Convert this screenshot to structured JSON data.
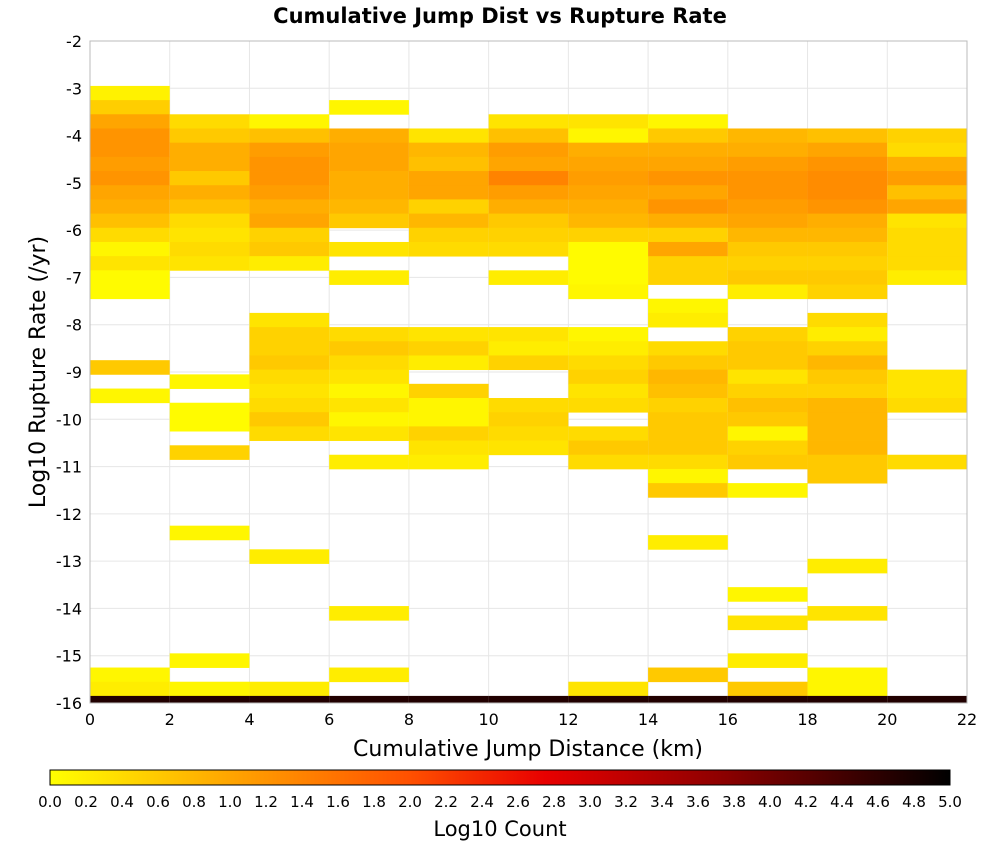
{
  "chart_data": {
    "type": "heatmap",
    "title": "Cumulative Jump Dist vs Rupture Rate",
    "xlabel": "Cumulative Jump Distance (km)",
    "ylabel": "Log10 Rupture Rate (/yr)",
    "xlim": [
      0,
      22
    ],
    "ylim": [
      -16,
      -2
    ],
    "xticks": [
      "0",
      "2",
      "4",
      "6",
      "8",
      "10",
      "12",
      "14",
      "16",
      "18",
      "20",
      "22"
    ],
    "yticks": [
      "-2",
      "-3",
      "-4",
      "-5",
      "-6",
      "-7",
      "-8",
      "-9",
      "-10",
      "-11",
      "-12",
      "-13",
      "-14",
      "-15",
      "-16"
    ],
    "grid": true,
    "x_bin_width": 2,
    "y_bin_height": 0.3,
    "colorbar": {
      "label": "Log10 Count",
      "range": [
        0,
        5
      ],
      "ticks": [
        "0.0",
        "0.2",
        "0.4",
        "0.6",
        "0.8",
        "1.0",
        "1.2",
        "1.4",
        "1.6",
        "1.8",
        "2.0",
        "2.2",
        "2.4",
        "2.6",
        "2.8",
        "3.0",
        "3.2",
        "3.4",
        "3.6",
        "3.8",
        "4.0",
        "4.2",
        "4.4",
        "4.6",
        "4.8",
        "5.0"
      ],
      "colormap": [
        "#ffff00",
        "#ffa500",
        "#ff5000",
        "#e80000",
        "#8b0000",
        "#000000"
      ]
    },
    "cells": [
      {
        "x": 1,
        "y": -3.1,
        "v": 0.15
      },
      {
        "x": 1,
        "y": -3.4,
        "v": 0.55
      },
      {
        "x": 1,
        "y": -3.7,
        "v": 1.0
      },
      {
        "x": 1,
        "y": -4.0,
        "v": 1.2
      },
      {
        "x": 1,
        "y": -4.3,
        "v": 1.2
      },
      {
        "x": 1,
        "y": -4.6,
        "v": 1.1
      },
      {
        "x": 1,
        "y": -4.9,
        "v": 1.2
      },
      {
        "x": 1,
        "y": -5.2,
        "v": 1.0
      },
      {
        "x": 1,
        "y": -5.5,
        "v": 0.9
      },
      {
        "x": 1,
        "y": -5.8,
        "v": 0.7
      },
      {
        "x": 1,
        "y": -6.1,
        "v": 0.4
      },
      {
        "x": 1,
        "y": -6.4,
        "v": 0.1
      },
      {
        "x": 1,
        "y": -6.7,
        "v": 0.3
      },
      {
        "x": 1,
        "y": -7.0,
        "v": 0.05
      },
      {
        "x": 1,
        "y": -7.3,
        "v": 0.05
      },
      {
        "x": 1,
        "y": -8.9,
        "v": 0.6
      },
      {
        "x": 1,
        "y": -9.5,
        "v": 0.1
      },
      {
        "x": 1,
        "y": -15.4,
        "v": 0.1
      },
      {
        "x": 1,
        "y": -15.7,
        "v": 0.2
      },
      {
        "x": 1,
        "y": -16.0,
        "v": 4.7
      },
      {
        "x": 3,
        "y": -3.7,
        "v": 0.4
      },
      {
        "x": 3,
        "y": -4.0,
        "v": 0.6
      },
      {
        "x": 3,
        "y": -4.3,
        "v": 0.9
      },
      {
        "x": 3,
        "y": -4.6,
        "v": 0.9
      },
      {
        "x": 3,
        "y": -4.9,
        "v": 0.6
      },
      {
        "x": 3,
        "y": -5.2,
        "v": 0.9
      },
      {
        "x": 3,
        "y": -5.5,
        "v": 0.7
      },
      {
        "x": 3,
        "y": -5.8,
        "v": 0.4
      },
      {
        "x": 3,
        "y": -6.1,
        "v": 0.3
      },
      {
        "x": 3,
        "y": -6.4,
        "v": 0.4
      },
      {
        "x": 3,
        "y": -6.7,
        "v": 0.3
      },
      {
        "x": 3,
        "y": -9.2,
        "v": 0.1
      },
      {
        "x": 3,
        "y": -9.8,
        "v": 0.05
      },
      {
        "x": 3,
        "y": -10.1,
        "v": 0.05
      },
      {
        "x": 3,
        "y": -10.7,
        "v": 0.5
      },
      {
        "x": 3,
        "y": -12.4,
        "v": 0.1
      },
      {
        "x": 3,
        "y": -15.1,
        "v": 0.1
      },
      {
        "x": 3,
        "y": -15.7,
        "v": 0.1
      },
      {
        "x": 3,
        "y": -16.0,
        "v": 4.7
      },
      {
        "x": 5,
        "y": -3.7,
        "v": 0.1
      },
      {
        "x": 5,
        "y": -4.0,
        "v": 0.7
      },
      {
        "x": 5,
        "y": -4.3,
        "v": 1.1
      },
      {
        "x": 5,
        "y": -4.6,
        "v": 1.2
      },
      {
        "x": 5,
        "y": -4.9,
        "v": 1.2
      },
      {
        "x": 5,
        "y": -5.2,
        "v": 1.1
      },
      {
        "x": 5,
        "y": -5.5,
        "v": 0.9
      },
      {
        "x": 5,
        "y": -5.8,
        "v": 1.0
      },
      {
        "x": 5,
        "y": -6.1,
        "v": 0.5
      },
      {
        "x": 5,
        "y": -6.4,
        "v": 0.6
      },
      {
        "x": 5,
        "y": -6.7,
        "v": 0.2
      },
      {
        "x": 5,
        "y": -7.9,
        "v": 0.3
      },
      {
        "x": 5,
        "y": -8.2,
        "v": 0.5
      },
      {
        "x": 5,
        "y": -8.5,
        "v": 0.5
      },
      {
        "x": 5,
        "y": -8.8,
        "v": 0.6
      },
      {
        "x": 5,
        "y": -9.1,
        "v": 0.4
      },
      {
        "x": 5,
        "y": -9.4,
        "v": 0.3
      },
      {
        "x": 5,
        "y": -9.7,
        "v": 0.4
      },
      {
        "x": 5,
        "y": -10.0,
        "v": 0.6
      },
      {
        "x": 5,
        "y": -10.3,
        "v": 0.4
      },
      {
        "x": 5,
        "y": -12.9,
        "v": 0.2
      },
      {
        "x": 5,
        "y": -15.7,
        "v": 0.2
      },
      {
        "x": 5,
        "y": -16.0,
        "v": 4.7
      },
      {
        "x": 7,
        "y": -3.4,
        "v": 0.1
      },
      {
        "x": 7,
        "y": -4.0,
        "v": 0.9
      },
      {
        "x": 7,
        "y": -4.3,
        "v": 1.0
      },
      {
        "x": 7,
        "y": -4.6,
        "v": 1.0
      },
      {
        "x": 7,
        "y": -4.9,
        "v": 0.9
      },
      {
        "x": 7,
        "y": -5.2,
        "v": 0.9
      },
      {
        "x": 7,
        "y": -5.5,
        "v": 0.8
      },
      {
        "x": 7,
        "y": -5.8,
        "v": 0.6
      },
      {
        "x": 7,
        "y": -6.4,
        "v": 0.3
      },
      {
        "x": 7,
        "y": -7.0,
        "v": 0.2
      },
      {
        "x": 7,
        "y": -8.2,
        "v": 0.4
      },
      {
        "x": 7,
        "y": -8.5,
        "v": 0.6
      },
      {
        "x": 7,
        "y": -8.8,
        "v": 0.4
      },
      {
        "x": 7,
        "y": -9.1,
        "v": 0.3
      },
      {
        "x": 7,
        "y": -9.4,
        "v": 0.1
      },
      {
        "x": 7,
        "y": -9.7,
        "v": 0.3
      },
      {
        "x": 7,
        "y": -10.0,
        "v": 0.1
      },
      {
        "x": 7,
        "y": -10.3,
        "v": 0.3
      },
      {
        "x": 7,
        "y": -10.9,
        "v": 0.2
      },
      {
        "x": 7,
        "y": -14.1,
        "v": 0.2
      },
      {
        "x": 7,
        "y": -15.4,
        "v": 0.2
      },
      {
        "x": 7,
        "y": -16.0,
        "v": 4.7
      },
      {
        "x": 9,
        "y": -4.0,
        "v": 0.3
      },
      {
        "x": 9,
        "y": -4.3,
        "v": 0.8
      },
      {
        "x": 9,
        "y": -4.6,
        "v": 0.7
      },
      {
        "x": 9,
        "y": -4.9,
        "v": 1.0
      },
      {
        "x": 9,
        "y": -5.2,
        "v": 1.0
      },
      {
        "x": 9,
        "y": -5.5,
        "v": 0.5
      },
      {
        "x": 9,
        "y": -5.8,
        "v": 0.8
      },
      {
        "x": 9,
        "y": -6.1,
        "v": 0.5
      },
      {
        "x": 9,
        "y": -6.4,
        "v": 0.4
      },
      {
        "x": 9,
        "y": -8.2,
        "v": 0.3
      },
      {
        "x": 9,
        "y": -8.5,
        "v": 0.5
      },
      {
        "x": 9,
        "y": -8.8,
        "v": 0.2
      },
      {
        "x": 9,
        "y": -9.4,
        "v": 0.5
      },
      {
        "x": 9,
        "y": -9.7,
        "v": 0.1
      },
      {
        "x": 9,
        "y": -10.0,
        "v": 0.1
      },
      {
        "x": 9,
        "y": -10.3,
        "v": 0.5
      },
      {
        "x": 9,
        "y": -10.6,
        "v": 0.3
      },
      {
        "x": 9,
        "y": -10.9,
        "v": 0.2
      },
      {
        "x": 9,
        "y": -16.0,
        "v": 4.7
      },
      {
        "x": 11,
        "y": -3.7,
        "v": 0.3
      },
      {
        "x": 11,
        "y": -4.0,
        "v": 0.7
      },
      {
        "x": 11,
        "y": -4.3,
        "v": 1.1
      },
      {
        "x": 11,
        "y": -4.6,
        "v": 1.0
      },
      {
        "x": 11,
        "y": -4.9,
        "v": 1.4
      },
      {
        "x": 11,
        "y": -5.2,
        "v": 1.1
      },
      {
        "x": 11,
        "y": -5.5,
        "v": 0.9
      },
      {
        "x": 11,
        "y": -5.8,
        "v": 0.6
      },
      {
        "x": 11,
        "y": -6.1,
        "v": 0.5
      },
      {
        "x": 11,
        "y": -6.4,
        "v": 0.4
      },
      {
        "x": 11,
        "y": -7.0,
        "v": 0.2
      },
      {
        "x": 11,
        "y": -8.2,
        "v": 0.3
      },
      {
        "x": 11,
        "y": -8.5,
        "v": 0.2
      },
      {
        "x": 11,
        "y": -8.8,
        "v": 0.5
      },
      {
        "x": 11,
        "y": -9.7,
        "v": 0.4
      },
      {
        "x": 11,
        "y": -10.0,
        "v": 0.5
      },
      {
        "x": 11,
        "y": -10.3,
        "v": 0.4
      },
      {
        "x": 11,
        "y": -10.6,
        "v": 0.3
      },
      {
        "x": 11,
        "y": -16.0,
        "v": 4.7
      },
      {
        "x": 13,
        "y": -3.7,
        "v": 0.3
      },
      {
        "x": 13,
        "y": -4.0,
        "v": 0.1
      },
      {
        "x": 13,
        "y": -4.3,
        "v": 0.9
      },
      {
        "x": 13,
        "y": -4.6,
        "v": 1.0
      },
      {
        "x": 13,
        "y": -4.9,
        "v": 1.1
      },
      {
        "x": 13,
        "y": -5.2,
        "v": 1.0
      },
      {
        "x": 13,
        "y": -5.5,
        "v": 0.9
      },
      {
        "x": 13,
        "y": -5.8,
        "v": 0.8
      },
      {
        "x": 13,
        "y": -6.1,
        "v": 0.5
      },
      {
        "x": 13,
        "y": -6.4,
        "v": 0.05
      },
      {
        "x": 13,
        "y": -6.7,
        "v": 0.05
      },
      {
        "x": 13,
        "y": -7.0,
        "v": 0.05
      },
      {
        "x": 13,
        "y": -7.3,
        "v": 0.1
      },
      {
        "x": 13,
        "y": -8.2,
        "v": 0.1
      },
      {
        "x": 13,
        "y": -8.5,
        "v": 0.2
      },
      {
        "x": 13,
        "y": -8.8,
        "v": 0.4
      },
      {
        "x": 13,
        "y": -9.1,
        "v": 0.5
      },
      {
        "x": 13,
        "y": -9.4,
        "v": 0.3
      },
      {
        "x": 13,
        "y": -9.7,
        "v": 0.4
      },
      {
        "x": 13,
        "y": -10.3,
        "v": 0.4
      },
      {
        "x": 13,
        "y": -10.6,
        "v": 0.6
      },
      {
        "x": 13,
        "y": -10.9,
        "v": 0.4
      },
      {
        "x": 13,
        "y": -15.7,
        "v": 0.3
      },
      {
        "x": 13,
        "y": -16.0,
        "v": 4.7
      },
      {
        "x": 15,
        "y": -3.7,
        "v": 0.1
      },
      {
        "x": 15,
        "y": -4.0,
        "v": 0.6
      },
      {
        "x": 15,
        "y": -4.3,
        "v": 0.9
      },
      {
        "x": 15,
        "y": -4.6,
        "v": 1.0
      },
      {
        "x": 15,
        "y": -4.9,
        "v": 1.2
      },
      {
        "x": 15,
        "y": -5.2,
        "v": 1.0
      },
      {
        "x": 15,
        "y": -5.5,
        "v": 1.2
      },
      {
        "x": 15,
        "y": -5.8,
        "v": 0.9
      },
      {
        "x": 15,
        "y": -6.1,
        "v": 0.5
      },
      {
        "x": 15,
        "y": -6.4,
        "v": 1.0
      },
      {
        "x": 15,
        "y": -6.7,
        "v": 0.5
      },
      {
        "x": 15,
        "y": -7.0,
        "v": 0.5
      },
      {
        "x": 15,
        "y": -7.6,
        "v": 0.1
      },
      {
        "x": 15,
        "y": -7.9,
        "v": 0.2
      },
      {
        "x": 15,
        "y": -8.5,
        "v": 0.4
      },
      {
        "x": 15,
        "y": -8.8,
        "v": 0.6
      },
      {
        "x": 15,
        "y": -9.1,
        "v": 0.8
      },
      {
        "x": 15,
        "y": -9.4,
        "v": 0.7
      },
      {
        "x": 15,
        "y": -9.7,
        "v": 0.5
      },
      {
        "x": 15,
        "y": -10.0,
        "v": 0.6
      },
      {
        "x": 15,
        "y": -10.3,
        "v": 0.6
      },
      {
        "x": 15,
        "y": -10.6,
        "v": 0.6
      },
      {
        "x": 15,
        "y": -10.9,
        "v": 0.4
      },
      {
        "x": 15,
        "y": -11.2,
        "v": 0.1
      },
      {
        "x": 15,
        "y": -11.5,
        "v": 0.6
      },
      {
        "x": 15,
        "y": -12.6,
        "v": 0.2
      },
      {
        "x": 15,
        "y": -15.4,
        "v": 0.6
      },
      {
        "x": 15,
        "y": -16.0,
        "v": 4.7
      },
      {
        "x": 17,
        "y": -4.0,
        "v": 0.8
      },
      {
        "x": 17,
        "y": -4.3,
        "v": 0.9
      },
      {
        "x": 17,
        "y": -4.6,
        "v": 1.1
      },
      {
        "x": 17,
        "y": -4.9,
        "v": 1.2
      },
      {
        "x": 17,
        "y": -5.2,
        "v": 1.2
      },
      {
        "x": 17,
        "y": -5.5,
        "v": 1.1
      },
      {
        "x": 17,
        "y": -5.8,
        "v": 1.0
      },
      {
        "x": 17,
        "y": -6.1,
        "v": 0.8
      },
      {
        "x": 17,
        "y": -6.4,
        "v": 0.6
      },
      {
        "x": 17,
        "y": -6.7,
        "v": 0.5
      },
      {
        "x": 17,
        "y": -7.0,
        "v": 0.6
      },
      {
        "x": 17,
        "y": -7.3,
        "v": 0.2
      },
      {
        "x": 17,
        "y": -8.2,
        "v": 0.5
      },
      {
        "x": 17,
        "y": -8.5,
        "v": 0.6
      },
      {
        "x": 17,
        "y": -8.8,
        "v": 0.6
      },
      {
        "x": 17,
        "y": -9.1,
        "v": 0.3
      },
      {
        "x": 17,
        "y": -9.4,
        "v": 0.5
      },
      {
        "x": 17,
        "y": -9.7,
        "v": 0.7
      },
      {
        "x": 17,
        "y": -10.0,
        "v": 0.6
      },
      {
        "x": 17,
        "y": -10.3,
        "v": 0.1
      },
      {
        "x": 17,
        "y": -10.6,
        "v": 0.5
      },
      {
        "x": 17,
        "y": -10.9,
        "v": 0.6
      },
      {
        "x": 17,
        "y": -11.5,
        "v": 0.1
      },
      {
        "x": 17,
        "y": -13.7,
        "v": 0.1
      },
      {
        "x": 17,
        "y": -14.3,
        "v": 0.3
      },
      {
        "x": 17,
        "y": -15.1,
        "v": 0.2
      },
      {
        "x": 17,
        "y": -15.7,
        "v": 0.6
      },
      {
        "x": 17,
        "y": -16.0,
        "v": 4.7
      },
      {
        "x": 19,
        "y": -4.0,
        "v": 0.7
      },
      {
        "x": 19,
        "y": -4.3,
        "v": 1.0
      },
      {
        "x": 19,
        "y": -4.6,
        "v": 1.2
      },
      {
        "x": 19,
        "y": -4.9,
        "v": 1.3
      },
      {
        "x": 19,
        "y": -5.2,
        "v": 1.3
      },
      {
        "x": 19,
        "y": -5.5,
        "v": 1.2
      },
      {
        "x": 19,
        "y": -5.8,
        "v": 0.9
      },
      {
        "x": 19,
        "y": -6.1,
        "v": 0.8
      },
      {
        "x": 19,
        "y": -6.4,
        "v": 0.6
      },
      {
        "x": 19,
        "y": -6.7,
        "v": 0.5
      },
      {
        "x": 19,
        "y": -7.0,
        "v": 0.6
      },
      {
        "x": 19,
        "y": -7.3,
        "v": 0.5
      },
      {
        "x": 19,
        "y": -7.9,
        "v": 0.4
      },
      {
        "x": 19,
        "y": -8.2,
        "v": 0.2
      },
      {
        "x": 19,
        "y": -8.5,
        "v": 0.5
      },
      {
        "x": 19,
        "y": -8.8,
        "v": 0.8
      },
      {
        "x": 19,
        "y": -9.1,
        "v": 0.6
      },
      {
        "x": 19,
        "y": -9.4,
        "v": 0.5
      },
      {
        "x": 19,
        "y": -9.7,
        "v": 0.8
      },
      {
        "x": 19,
        "y": -10.0,
        "v": 0.8
      },
      {
        "x": 19,
        "y": -10.3,
        "v": 0.8
      },
      {
        "x": 19,
        "y": -10.6,
        "v": 0.8
      },
      {
        "x": 19,
        "y": -10.9,
        "v": 0.6
      },
      {
        "x": 19,
        "y": -11.2,
        "v": 0.6
      },
      {
        "x": 19,
        "y": -13.1,
        "v": 0.2
      },
      {
        "x": 19,
        "y": -14.1,
        "v": 0.3
      },
      {
        "x": 19,
        "y": -15.4,
        "v": 0.1
      },
      {
        "x": 19,
        "y": -15.7,
        "v": 0.1
      },
      {
        "x": 19,
        "y": -16.0,
        "v": 4.7
      },
      {
        "x": 21,
        "y": -4.0,
        "v": 0.5
      },
      {
        "x": 21,
        "y": -4.3,
        "v": 0.4
      },
      {
        "x": 21,
        "y": -4.6,
        "v": 0.9
      },
      {
        "x": 21,
        "y": -4.9,
        "v": 1.1
      },
      {
        "x": 21,
        "y": -5.2,
        "v": 0.7
      },
      {
        "x": 21,
        "y": -5.5,
        "v": 1.0
      },
      {
        "x": 21,
        "y": -5.8,
        "v": 0.3
      },
      {
        "x": 21,
        "y": -6.1,
        "v": 0.4
      },
      {
        "x": 21,
        "y": -6.4,
        "v": 0.4
      },
      {
        "x": 21,
        "y": -6.7,
        "v": 0.4
      },
      {
        "x": 21,
        "y": -7.0,
        "v": 0.2
      },
      {
        "x": 21,
        "y": -9.1,
        "v": 0.3
      },
      {
        "x": 21,
        "y": -9.4,
        "v": 0.3
      },
      {
        "x": 21,
        "y": -9.7,
        "v": 0.4
      },
      {
        "x": 21,
        "y": -10.9,
        "v": 0.4
      },
      {
        "x": 21,
        "y": -16.0,
        "v": 4.7
      }
    ]
  }
}
